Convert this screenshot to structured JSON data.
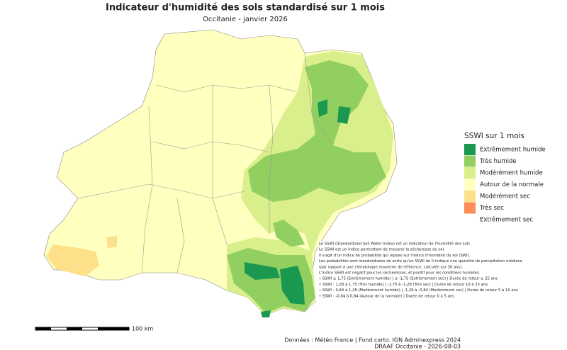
{
  "header": {
    "title": "Indicateur d'humidité des sols standardisé sur 1 mois",
    "subtitle": "Occitanie - janvier 2026"
  },
  "legend": {
    "title": "SSWI sur 1 mois",
    "items": [
      {
        "label": "Extrêmement humide",
        "color": "#1a9850"
      },
      {
        "label": "Très humide",
        "color": "#91cf60"
      },
      {
        "label": "Modérément humide",
        "color": "#d9ef8b"
      },
      {
        "label": "Autour de la normale",
        "color": "#ffffbf"
      },
      {
        "label": "Modérément sec",
        "color": "#fee08b"
      },
      {
        "label": "Très sec",
        "color": "#fc8d59"
      },
      {
        "label": "Extrêmement sec",
        "color": "#ffffff"
      }
    ]
  },
  "notes": [
    "Le SSWI (Standardized Soil Water Index) est un indicateur de l'humidité des sols.",
    "Le SSWI est un indice permettant de mesurer la sécheresse du sol.",
    "Il s'agit d'un indice de probabilité qui repose sur l'indice d'humidité du sol (SWI).",
    "Les probabilités sont standardisées de sorte qu'un SSWI de 0 indique une quantité de précipitation médiane",
    "(par rapport à une climatologie moyenne de référence, calculée sur 30 ans).",
    "L'indice SSWI est négatif pour les sécheresses, et positif pour les conditions humides.",
    "• SSWI ≥ 1,75 (Extrêmement humide) | ≤ -1,75 (Extrêmement sec) | Durée de retour ≥ 25 ans",
    "• SSWI : 1,28 à 1,75 (Très humide) | -1,75 à -1,28 (Très sec) | Durée de retour 10 à 25 ans",
    "• SSWI : 0,84 à 1,28 (Modérément humide) | -1,28 à -0,84 (Modérément sec) | Durée de retour 5 à 10 ans",
    "• SSWI : -0,84 à 0,84 (Autour de la normale) | Durée de retour 0 à 5 ans"
  ],
  "scale": {
    "label": "100 km"
  },
  "footer": {
    "sources": "Données : Météo France | Fond carto. IGN Adminexpress 2024",
    "credit": "DRAAF Occitanie - 2026-08-03"
  }
}
